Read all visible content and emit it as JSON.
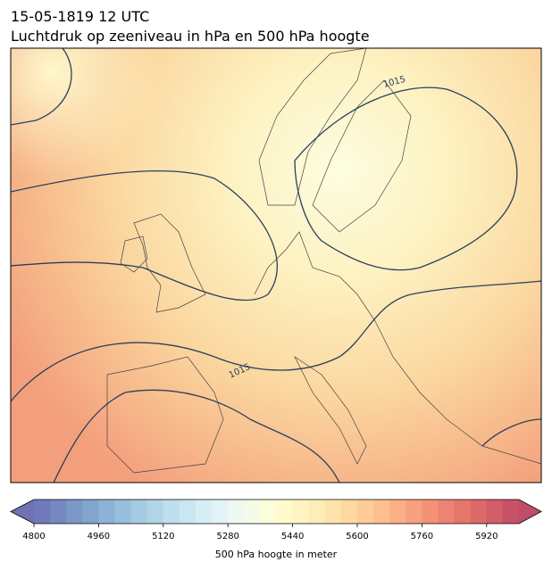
{
  "header": {
    "title": "15-05-1819 12 UTC",
    "subtitle": "Luchtdruk op zeeniveau in hPa en 500 hPa hoogte"
  },
  "map": {
    "contour_labels": [
      "1015",
      "1015"
    ]
  },
  "colorbar": {
    "lim": [
      4800,
      6000
    ],
    "ticks": [
      4800,
      4960,
      5120,
      5280,
      5440,
      5600,
      5760,
      5920
    ],
    "label": "500 hPa hoogte in meter"
  }
}
